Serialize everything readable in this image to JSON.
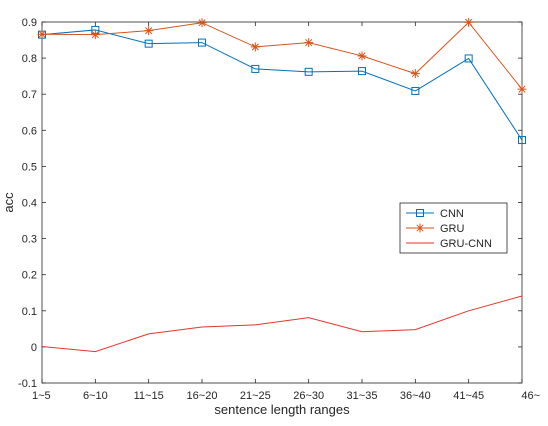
{
  "chart_data": {
    "type": "line",
    "categories": [
      "1~5",
      "6~10",
      "11~15",
      "16~20",
      "21~25",
      "26~30",
      "31~35",
      "36~40",
      "41~45",
      "46~"
    ],
    "series": [
      {
        "name": "CNN",
        "values": [
          0.865,
          0.878,
          0.84,
          0.843,
          0.77,
          0.762,
          0.764,
          0.709,
          0.799,
          0.573
        ],
        "color": "#0072BD",
        "marker": "square"
      },
      {
        "name": "GRU",
        "values": [
          0.866,
          0.865,
          0.876,
          0.898,
          0.831,
          0.843,
          0.806,
          0.757,
          0.899,
          0.714
        ],
        "color": "#D95319",
        "marker": "asterisk"
      },
      {
        "name": "GRU-CNN",
        "values": [
          0.001,
          -0.013,
          0.036,
          0.055,
          0.061,
          0.081,
          0.042,
          0.048,
          0.1,
          0.141
        ],
        "color": "#E8342B",
        "marker": "none"
      }
    ],
    "xlabel": "sentence length ranges",
    "ylabel": "acc",
    "ylim": [
      -0.1,
      0.9
    ],
    "yticks": [
      -0.1,
      0,
      0.1,
      0.2,
      0.3,
      0.4,
      0.5,
      0.6,
      0.7,
      0.8,
      0.9
    ],
    "ytick_labels": [
      "-0.1",
      "0",
      "0.1",
      "0.2",
      "0.3",
      "0.4",
      "0.5",
      "0.6",
      "0.7",
      "0.8",
      "0.9"
    ],
    "grid": false,
    "legend_position": "center-right"
  }
}
